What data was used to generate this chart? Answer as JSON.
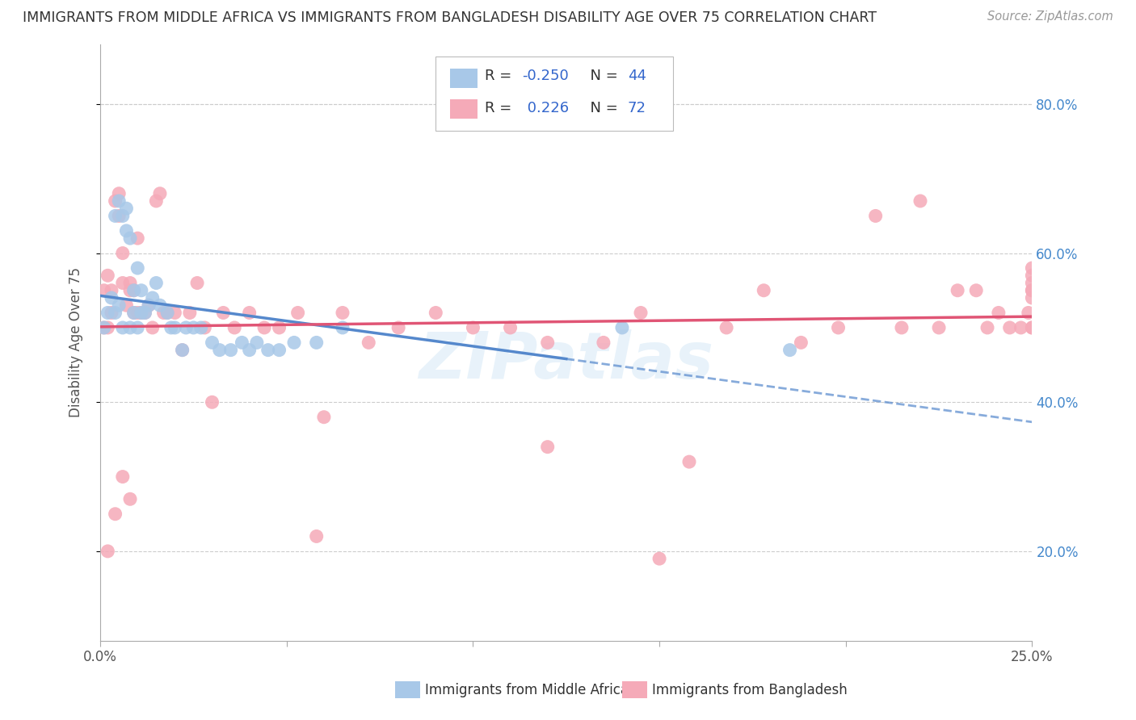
{
  "title": "IMMIGRANTS FROM MIDDLE AFRICA VS IMMIGRANTS FROM BANGLADESH DISABILITY AGE OVER 75 CORRELATION CHART",
  "source": "Source: ZipAtlas.com",
  "ylabel": "Disability Age Over 75",
  "xmin": 0.0,
  "xmax": 0.25,
  "ymin": 0.08,
  "ymax": 0.88,
  "yticks": [
    0.2,
    0.4,
    0.6,
    0.8
  ],
  "ytick_labels": [
    "20.0%",
    "40.0%",
    "60.0%",
    "80.0%"
  ],
  "r1": -0.25,
  "n1": 44,
  "r2": 0.226,
  "n2": 72,
  "scatter1_color": "#a8c8e8",
  "scatter2_color": "#f5aab8",
  "line1_color": "#5588cc",
  "line2_color": "#e05575",
  "scatter1_x": [
    0.001,
    0.002,
    0.003,
    0.004,
    0.004,
    0.005,
    0.005,
    0.006,
    0.006,
    0.007,
    0.007,
    0.008,
    0.008,
    0.009,
    0.009,
    0.01,
    0.01,
    0.011,
    0.011,
    0.012,
    0.013,
    0.014,
    0.015,
    0.016,
    0.018,
    0.019,
    0.02,
    0.022,
    0.023,
    0.025,
    0.027,
    0.03,
    0.032,
    0.035,
    0.038,
    0.04,
    0.042,
    0.045,
    0.048,
    0.052,
    0.058,
    0.065,
    0.14,
    0.185
  ],
  "scatter1_y": [
    0.5,
    0.52,
    0.54,
    0.52,
    0.65,
    0.67,
    0.53,
    0.5,
    0.65,
    0.66,
    0.63,
    0.5,
    0.62,
    0.52,
    0.55,
    0.5,
    0.58,
    0.52,
    0.55,
    0.52,
    0.53,
    0.54,
    0.56,
    0.53,
    0.52,
    0.5,
    0.5,
    0.47,
    0.5,
    0.5,
    0.5,
    0.48,
    0.47,
    0.47,
    0.48,
    0.47,
    0.48,
    0.47,
    0.47,
    0.48,
    0.48,
    0.5,
    0.5,
    0.47
  ],
  "scatter2_x": [
    0.001,
    0.001,
    0.002,
    0.002,
    0.003,
    0.003,
    0.004,
    0.005,
    0.005,
    0.006,
    0.006,
    0.007,
    0.008,
    0.008,
    0.009,
    0.009,
    0.01,
    0.01,
    0.011,
    0.012,
    0.013,
    0.014,
    0.015,
    0.016,
    0.017,
    0.018,
    0.02,
    0.022,
    0.024,
    0.026,
    0.028,
    0.03,
    0.033,
    0.036,
    0.04,
    0.044,
    0.048,
    0.053,
    0.058,
    0.065,
    0.072,
    0.08,
    0.09,
    0.1,
    0.11,
    0.12,
    0.135,
    0.145,
    0.158,
    0.168,
    0.178,
    0.188,
    0.198,
    0.208,
    0.215,
    0.22,
    0.225,
    0.23,
    0.235,
    0.238,
    0.241,
    0.244,
    0.247,
    0.249,
    0.25,
    0.25,
    0.25,
    0.25,
    0.25,
    0.25,
    0.25,
    0.25
  ],
  "scatter2_y": [
    0.5,
    0.55,
    0.5,
    0.57,
    0.52,
    0.55,
    0.67,
    0.65,
    0.68,
    0.56,
    0.6,
    0.53,
    0.56,
    0.55,
    0.52,
    0.55,
    0.52,
    0.62,
    0.52,
    0.52,
    0.53,
    0.5,
    0.67,
    0.68,
    0.52,
    0.52,
    0.52,
    0.47,
    0.52,
    0.56,
    0.5,
    0.4,
    0.52,
    0.5,
    0.52,
    0.5,
    0.5,
    0.52,
    0.22,
    0.52,
    0.48,
    0.5,
    0.52,
    0.5,
    0.5,
    0.48,
    0.48,
    0.52,
    0.32,
    0.5,
    0.55,
    0.48,
    0.5,
    0.65,
    0.5,
    0.67,
    0.5,
    0.55,
    0.55,
    0.5,
    0.52,
    0.5,
    0.5,
    0.52,
    0.58,
    0.57,
    0.56,
    0.55,
    0.54,
    0.5,
    0.55,
    0.5
  ],
  "scatter2_low_x": [
    0.002,
    0.004,
    0.006,
    0.008,
    0.06,
    0.12,
    0.15
  ],
  "scatter2_low_y": [
    0.2,
    0.25,
    0.3,
    0.27,
    0.38,
    0.34,
    0.19
  ]
}
